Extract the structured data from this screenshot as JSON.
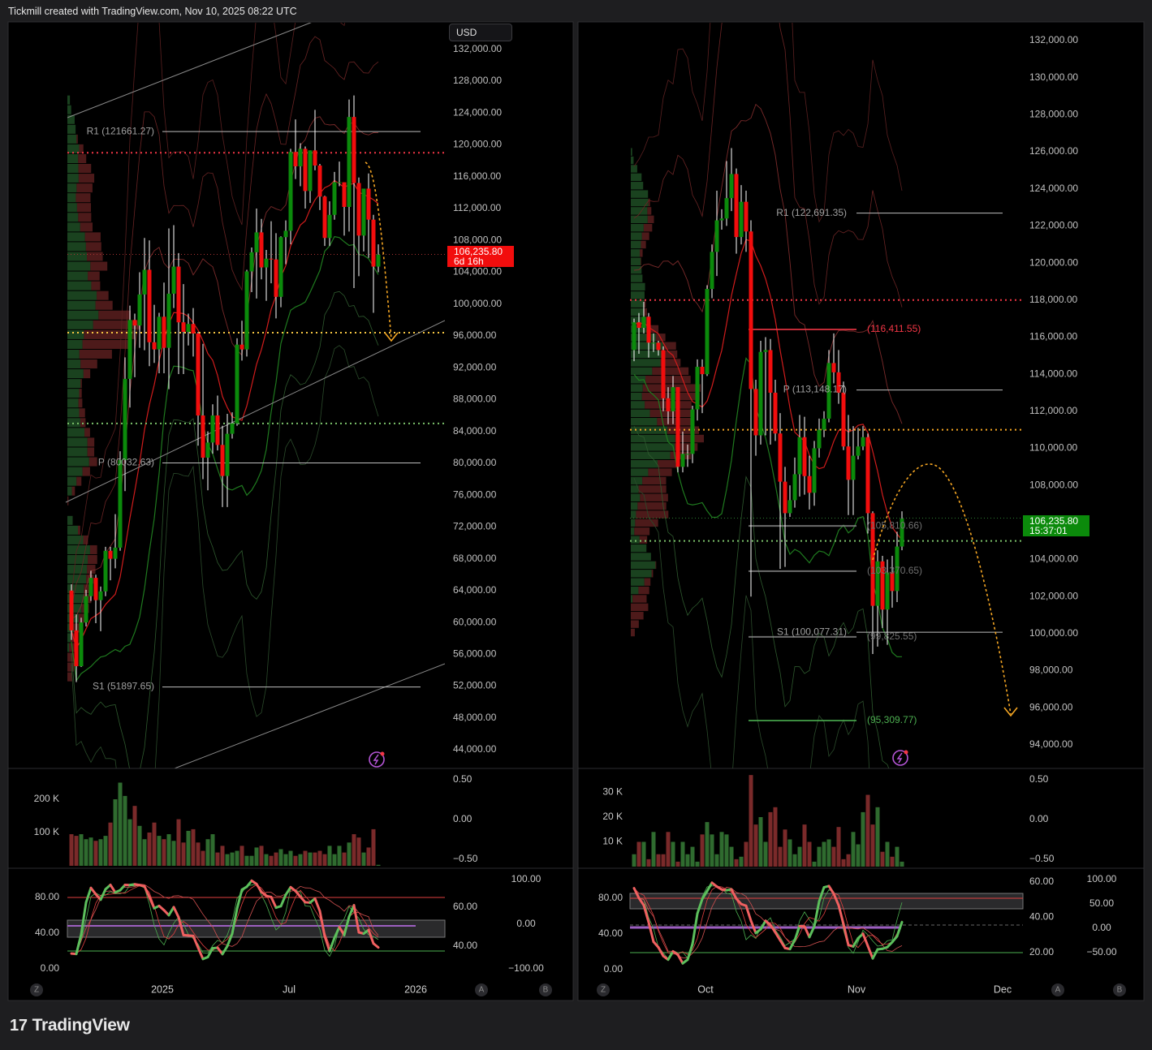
{
  "header": {
    "title": "Tickmill created with TradingView.com, Nov 10, 2025 08:22 UTC"
  },
  "footer": {
    "logo_text": "TradingView",
    "logo_mark": "17"
  },
  "currency_button": "USD",
  "scale_buttons": {
    "z": "Z",
    "a": "A",
    "b": "B"
  },
  "colors": {
    "up": "#0b8a0b",
    "down": "#f20d0d",
    "volume_up": "#2f6b2f",
    "volume_down": "#7a2a2a",
    "forecast": "#f5a623",
    "resistance": "#f23645",
    "support": "#4caf50",
    "background": "#000000"
  },
  "icons": {
    "alert": "lightning-icon"
  },
  "chart_data": [
    {
      "type": "candlestick",
      "price_ticks": [
        "132,000.00",
        "128,000.00",
        "124,000.00",
        "120,000.00",
        "116,000.00",
        "112,000.00",
        "108,000.00",
        "104,000.00",
        "100,000.00",
        "96,000.00",
        "92,000.00",
        "88,000.00",
        "84,000.00",
        "80,000.00",
        "76,000.00",
        "72,000.00",
        "68,000.00",
        "64,000.00",
        "60,000.00",
        "56,000.00",
        "52,000.00",
        "48,000.00",
        "44,000.00"
      ],
      "time_labels": [
        "2025",
        "Jul",
        "2026"
      ],
      "last_price": {
        "value": "106,235.80",
        "countdown": "6d 16h",
        "color": "#f20d0d"
      },
      "first_open": 64000,
      "close": [
        59000,
        54500,
        60000,
        63300,
        65600,
        62800,
        63900,
        69000,
        68000,
        69400,
        80400,
        90600,
        98000,
        97300,
        101200,
        104300,
        95200,
        94300,
        98400,
        94500,
        101300,
        104700,
        97700,
        96500,
        97500,
        96300,
        86000,
        80700,
        82600,
        86000,
        82300,
        78400,
        83700,
        85000,
        94900,
        94300,
        104100,
        106500,
        109000,
        104600,
        105700,
        105600,
        100900,
        108400,
        109200,
        119100,
        117300,
        119500,
        114200,
        119300,
        117400,
        113500,
        108300,
        111200,
        115300,
        115300,
        112200,
        123500,
        115200,
        108600,
        114500,
        110600,
        104700,
        106200
      ],
      "high": [
        64800,
        61000,
        60600,
        64100,
        66500,
        66000,
        64500,
        69500,
        69500,
        73600,
        81500,
        93300,
        99800,
        98800,
        104000,
        108300,
        108000,
        99900,
        98900,
        102700,
        109500,
        109900,
        106400,
        102500,
        98800,
        99500,
        96500,
        95000,
        84000,
        87400,
        88500,
        84700,
        86200,
        86400,
        95700,
        97900,
        104300,
        107100,
        112000,
        110700,
        106800,
        110400,
        108900,
        108500,
        110500,
        119500,
        123200,
        120200,
        119800,
        119300,
        124400,
        117600,
        113600,
        112900,
        116600,
        117900,
        113900,
        125700,
        126200,
        115900,
        114000,
        116400,
        111200,
        107500
      ],
      "low": [
        57800,
        52500,
        54400,
        59500,
        62700,
        59900,
        58900,
        63300,
        65300,
        66800,
        69000,
        76500,
        87000,
        90800,
        94500,
        94200,
        92200,
        92600,
        91300,
        91300,
        89300,
        99500,
        91200,
        91200,
        94800,
        93400,
        82200,
        78000,
        76600,
        81200,
        81600,
        74500,
        74500,
        83100,
        84700,
        92900,
        93400,
        101500,
        100700,
        103100,
        100400,
        102600,
        98200,
        99600,
        105000,
        107500,
        115700,
        114800,
        112000,
        112700,
        116800,
        111800,
        107300,
        107300,
        110600,
        114800,
        108600,
        109100,
        102000,
        103500,
        106600,
        105800,
        98900,
        104000
      ],
      "volume": [
        95000,
        90000,
        95000,
        80000,
        85000,
        75000,
        80000,
        90000,
        130000,
        200000,
        250000,
        210000,
        140000,
        180000,
        120000,
        80000,
        100000,
        130000,
        90000,
        80000,
        95000,
        75000,
        140000,
        70000,
        105000,
        110000,
        70000,
        45000,
        80000,
        95000,
        40000,
        60000,
        35000,
        40000,
        45000,
        60000,
        30000,
        30000,
        55000,
        60000,
        35000,
        30000,
        40000,
        50000,
        35000,
        45000,
        30000,
        35000,
        45000,
        40000,
        40000,
        45000,
        35000,
        60000,
        35000,
        60000,
        40000,
        70000,
        95000,
        85000,
        40000,
        55000,
        110000,
        3000
      ],
      "volume_ticks": [
        {
          "label": "200 K",
          "value": 200000
        },
        {
          "label": "100 K",
          "value": 100000
        }
      ],
      "volume_scale_labels": [
        "0.50",
        "0.00",
        "−0.50"
      ],
      "osc_ticks_left": [
        "80.00",
        "40.00",
        "0.00"
      ],
      "osc_ticks_mid": [
        "60.00",
        "40.00"
      ],
      "osc_ticks_right": [
        "100.00",
        "0.00",
        "−100.00"
      ],
      "levels": [
        {
          "kind": "pivot",
          "label": "R1 (121661.27)",
          "price": 121661.27
        },
        {
          "kind": "pivot",
          "label": "P (80032.63)",
          "price": 80032.63
        },
        {
          "kind": "pivot",
          "label": "S1 (51897.65)",
          "price": 51897.65
        }
      ],
      "dotted_levels": [
        {
          "price": 119000,
          "color": "#f23645"
        },
        {
          "price": 106235.8,
          "color": "#a33"
        },
        {
          "price": 96400,
          "color": "#f5c542"
        },
        {
          "price": 85000,
          "color": "#7cc36b"
        }
      ]
    },
    {
      "type": "candlestick",
      "price_ticks": [
        "132,000.00",
        "130,000.00",
        "128,000.00",
        "126,000.00",
        "124,000.00",
        "122,000.00",
        "120,000.00",
        "118,000.00",
        "116,000.00",
        "114,000.00",
        "112,000.00",
        "110,000.00",
        "108,000.00",
        "104,000.00",
        "102,000.00",
        "100,000.00",
        "98,000.00",
        "96,000.00",
        "94,000.00"
      ],
      "time_labels": [
        "Oct",
        "Nov",
        "Dec"
      ],
      "last_price": {
        "value": "106,235.80",
        "countdown": "15:37:01",
        "color": "#0b8a0b"
      },
      "first_open": 115300,
      "close": [
        116800,
        116500,
        117100,
        115700,
        115700,
        115300,
        112700,
        112000,
        113300,
        109000,
        109700,
        109700,
        112100,
        114400,
        114000,
        118600,
        120600,
        122300,
        122400,
        123500,
        124800,
        121400,
        123300,
        121700,
        113200,
        110700,
        115200,
        115300,
        113000,
        110800,
        108200,
        106500,
        107200,
        108600,
        110600,
        108500,
        107600,
        110000,
        111000,
        111600,
        114600,
        114100,
        113000,
        110100,
        108300,
        109600,
        110100,
        110600,
        106500,
        101500,
        103900,
        101300,
        103300,
        102300,
        104700,
        106200
      ],
      "high": [
        117000,
        117300,
        117900,
        117300,
        116200,
        115800,
        115500,
        113300,
        113900,
        113300,
        110900,
        110200,
        112300,
        114800,
        114800,
        118800,
        121000,
        123900,
        122900,
        125500,
        126200,
        125100,
        124200,
        123900,
        122300,
        113700,
        115800,
        116000,
        115900,
        113700,
        111900,
        109000,
        108000,
        109500,
        111800,
        111700,
        109600,
        110400,
        111600,
        112000,
        115300,
        116200,
        115300,
        113600,
        111800,
        111200,
        111100,
        111200,
        110800,
        106600,
        104500,
        104200,
        104000,
        104200,
        105500,
        106600
      ],
      "low": [
        114700,
        115100,
        116200,
        114900,
        115200,
        115000,
        112000,
        111300,
        111300,
        108700,
        108700,
        109000,
        109200,
        111500,
        111900,
        113900,
        118100,
        119300,
        121800,
        122000,
        122800,
        120500,
        121000,
        120600,
        102000,
        109600,
        110200,
        110700,
        110200,
        110400,
        103500,
        103600,
        106300,
        106800,
        107400,
        107500,
        106700,
        106900,
        109500,
        110600,
        111400,
        113500,
        112400,
        109900,
        106400,
        106400,
        109400,
        109900,
        105400,
        98900,
        99300,
        100300,
        99400,
        101400,
        101700,
        104500
      ],
      "volume": [
        5000,
        10000,
        10000,
        3000,
        14000,
        5000,
        5000,
        14000,
        10000,
        2000,
        10000,
        5000,
        8000,
        2000,
        13000,
        18000,
        13000,
        5000,
        14000,
        13000,
        8000,
        3000,
        4000,
        10000,
        37000,
        17000,
        20000,
        10000,
        22000,
        24000,
        8000,
        15000,
        11000,
        5000,
        8000,
        17000,
        10000,
        2000,
        8000,
        10000,
        11000,
        8000,
        16000,
        3000,
        5000,
        14000,
        9000,
        22000,
        29000,
        17000,
        24000,
        6000,
        10000,
        4000,
        8000,
        2000
      ],
      "volume_ticks": [
        {
          "label": "30 K",
          "value": 30000
        },
        {
          "label": "20 K",
          "value": 20000
        },
        {
          "label": "10 K",
          "value": 10000
        }
      ],
      "volume_scale_labels": [
        "0.50",
        "0.00",
        "−0.50"
      ],
      "osc_ticks_left": [
        "80.00",
        "40.00",
        "0.00"
      ],
      "osc_ticks_mid": [
        "60.00",
        "40.00",
        "20.00"
      ],
      "osc_ticks_right": [
        "100.00",
        "50.00",
        "0.00",
        "−50.00"
      ],
      "levels": [
        {
          "kind": "pivot",
          "label": "R1 (122,691.35)",
          "price": 122691.35
        },
        {
          "kind": "band",
          "label": "(116,411.55)",
          "price": 116411.55,
          "color": "#f23645"
        },
        {
          "kind": "pivot",
          "label": "P (113,148.17)",
          "price": 113148.17
        },
        {
          "kind": "band",
          "label": "(105,810.66)",
          "price": 105810.66,
          "color": "#888888"
        },
        {
          "kind": "band",
          "label": "(103,370.65)",
          "price": 103370.65,
          "color": "#888888"
        },
        {
          "kind": "pivot",
          "label": "S1 (100,077.31)",
          "price": 100077.31
        },
        {
          "kind": "band",
          "label": "(99,825.55)",
          "price": 99825.55,
          "color": "#888888"
        },
        {
          "kind": "band",
          "label": "(95,309.77)",
          "price": 95309.77,
          "color": "#4caf50"
        }
      ],
      "dotted_levels": [
        {
          "price": 118000,
          "color": "#f23645"
        },
        {
          "price": 111000,
          "color": "#f5a623"
        },
        {
          "price": 106235.8,
          "color": "#2e7d32"
        },
        {
          "price": 105000,
          "color": "#7cc36b"
        }
      ]
    }
  ]
}
